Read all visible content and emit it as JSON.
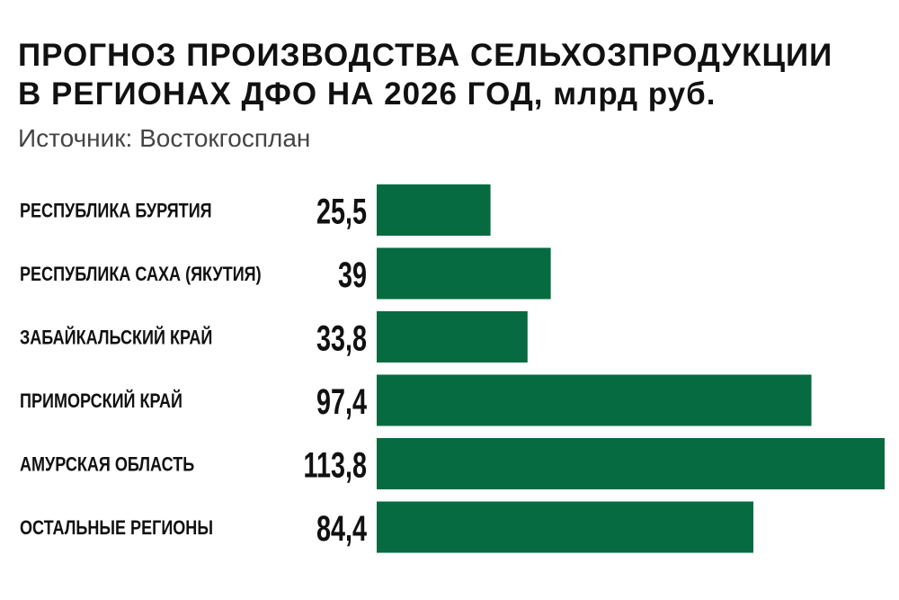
{
  "chart_data": {
    "type": "bar",
    "orientation": "horizontal",
    "title": [
      "ПРОГНОЗ ПРОИЗВОДСТВА СЕЛЬХОЗПРОДУКЦИИ",
      "В РЕГИОНАХ ДФО НА 2026 ГОД, млрд руб."
    ],
    "subtitle": "Источник: Востокгосплан",
    "categories": [
      "РЕСПУБЛИКА БУРЯТИЯ",
      "РЕСПУБЛИКА САХА (ЯКУТИЯ)",
      "ЗАБАЙКАЛЬСКИЙ КРАЙ",
      "ПРИМОРСКИЙ КРАЙ",
      "АМУРСКАЯ ОБЛАСТЬ",
      "ОСТАЛЬНЫЕ РЕГИОНЫ"
    ],
    "values": [
      25.5,
      39,
      33.8,
      97.4,
      113.8,
      84.4
    ],
    "value_labels": [
      "25,5",
      "39",
      "33,8",
      "97,4",
      "113,8",
      "84,4"
    ],
    "xlim": [
      0,
      113.8
    ],
    "grid": false,
    "bar_color": "#066b40"
  }
}
